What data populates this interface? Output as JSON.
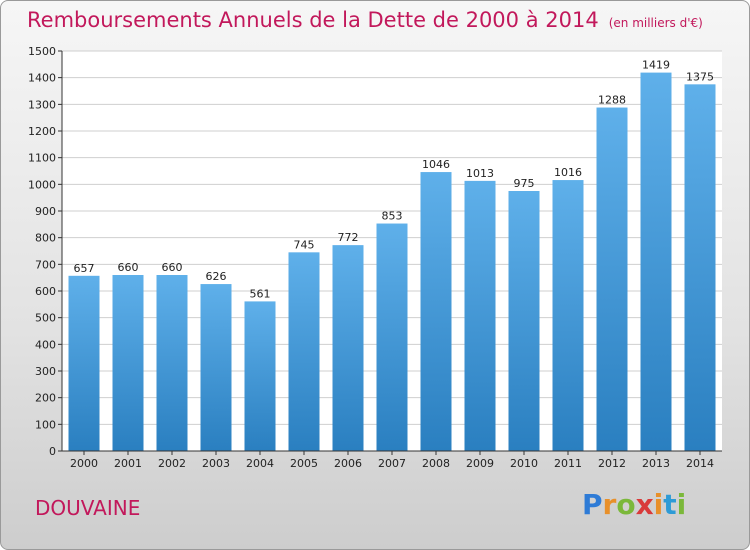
{
  "title": {
    "main": "Remboursements Annuels de la Dette de 2000 à 2014",
    "unit": "(en milliers d'€)"
  },
  "commune": "DOUVAINE",
  "brand": {
    "letters": [
      "P",
      "r",
      "o",
      "x",
      "i",
      "t",
      "i"
    ],
    "colors": [
      "#2e7bd6",
      "#e8902a",
      "#7bb83a",
      "#d93a3a",
      "#e8902a",
      "#2e9bd6",
      "#7bb83a"
    ]
  },
  "colors": {
    "bar_top": "#5fb0ea",
    "bar_bottom": "#2a7fc0",
    "grid": "#cfcfcf",
    "axis": "#333333",
    "title": "#c2185b"
  },
  "chart_data": {
    "type": "bar",
    "categories": [
      "2000",
      "2001",
      "2002",
      "2003",
      "2004",
      "2005",
      "2006",
      "2007",
      "2008",
      "2009",
      "2010",
      "2011",
      "2012",
      "2013",
      "2014"
    ],
    "values": [
      657,
      660,
      660,
      626,
      561,
      745,
      772,
      853,
      1046,
      1013,
      975,
      1016,
      1288,
      1419,
      1375
    ],
    "ylim": [
      0,
      1500
    ],
    "yticks": [
      0,
      100,
      200,
      300,
      400,
      500,
      600,
      700,
      800,
      900,
      1000,
      1100,
      1200,
      1300,
      1400,
      1500
    ],
    "grid": true,
    "xlabel": "",
    "ylabel": ""
  }
}
